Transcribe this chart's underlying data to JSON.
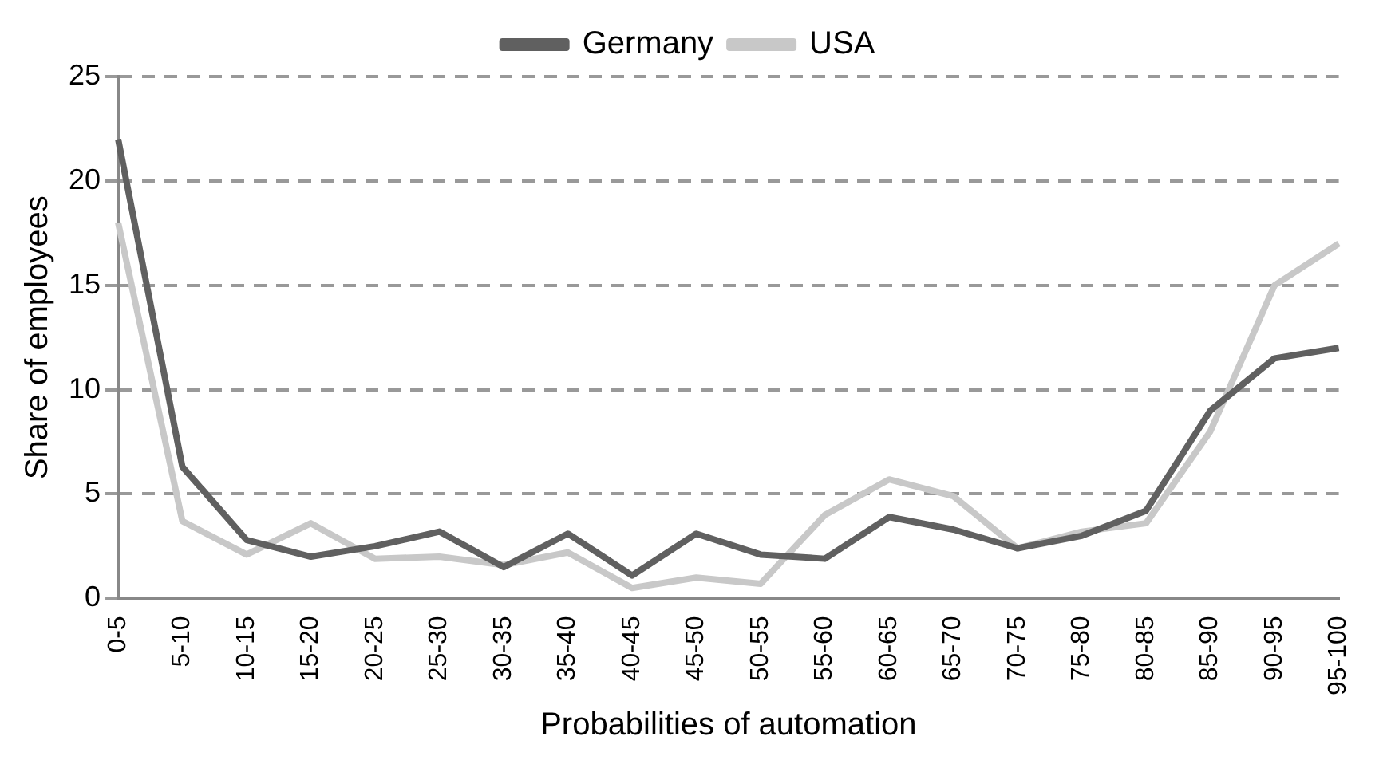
{
  "chart_data": {
    "type": "line",
    "xlabel": "Probabilities of automation",
    "ylabel": "Share of employees",
    "categories": [
      "0-5",
      "5-10",
      "10-15",
      "15-20",
      "20-25",
      "25-30",
      "30-35",
      "35-40",
      "40-45",
      "45-50",
      "50-55",
      "55-60",
      "60-65",
      "65-70",
      "70-75",
      "75-80",
      "80-85",
      "85-90",
      "90-95",
      "95-100"
    ],
    "series": [
      {
        "name": "Germany",
        "color": "#606060",
        "values": [
          22,
          6.3,
          2.8,
          2.0,
          2.5,
          3.2,
          1.5,
          3.1,
          1.1,
          3.1,
          2.1,
          1.9,
          3.9,
          3.3,
          2.4,
          3.0,
          4.2,
          9,
          11.5,
          12
        ]
      },
      {
        "name": "USA",
        "color": "#c8c8c8",
        "values": [
          18,
          3.7,
          2.1,
          3.6,
          1.9,
          2.0,
          1.6,
          2.2,
          0.5,
          1.0,
          0.7,
          4.0,
          5.7,
          4.9,
          2.4,
          3.2,
          3.6,
          8,
          15,
          17
        ]
      }
    ],
    "ylim": [
      0,
      25
    ],
    "yticks": [
      0,
      5,
      10,
      15,
      20,
      25
    ],
    "grid": "y",
    "legend": "top",
    "marker": "none",
    "line_style": "solid"
  }
}
